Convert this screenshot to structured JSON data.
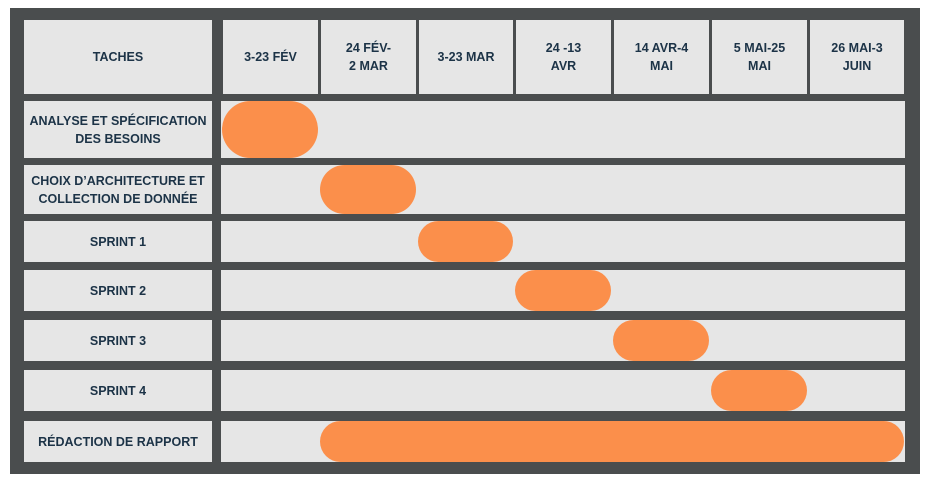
{
  "header": {
    "tasks_label": "TACHES",
    "periods": [
      "3-23 FÉV",
      "24 FÉV-\n2 MAR",
      "3-23 MAR",
      "24 -13\nAVR",
      "14 AVR-4\nMAI",
      "5 MAI-25\nMAI",
      "26 MAI-3\nJUIN"
    ]
  },
  "tasks": [
    {
      "label": "ANALYSE ET SPÉCIFICATION\nDES BESOINS",
      "start": 0,
      "end": 1
    },
    {
      "label": "CHOIX D’ARCHITECTURE ET\nCOLLECTION DE DONNÉE",
      "start": 1,
      "end": 2
    },
    {
      "label": "SPRINT 1",
      "start": 2,
      "end": 3
    },
    {
      "label": "SPRINT 2",
      "start": 3,
      "end": 4
    },
    {
      "label": "SPRINT 3",
      "start": 4,
      "end": 5
    },
    {
      "label": "SPRINT 4",
      "start": 5,
      "end": 6
    },
    {
      "label": "RÉDACTION DE RAPPORT",
      "start": 1,
      "end": 7
    }
  ],
  "colors": {
    "frame": "#4a4d4e",
    "cell": "#e6e6e6",
    "text": "#1c3347",
    "bar": "#fb8f4b"
  }
}
